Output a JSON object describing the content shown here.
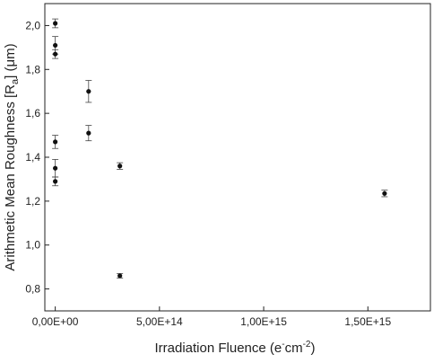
{
  "chart_data": {
    "type": "scatter",
    "title": "",
    "xlabel": "Irradiation Fluence (e⁻cm⁻²)",
    "ylabel": "Arithmetic Mean Roughness [Ra] (μm)",
    "ylabel_parts": {
      "before": "Arithmetic Mean Roughness [R",
      "sub": "a",
      "after": "] (μm)"
    },
    "xlabel_parts": {
      "before": "Irradiation Fluence (e",
      "sup1": "-",
      "mid": "cm",
      "sup2": "-2",
      "after": ")"
    },
    "xlim": [
      -50000000000000.0,
      1800000000000000.0
    ],
    "ylim": [
      0.7,
      2.1
    ],
    "x_ticks": [
      {
        "value": 0,
        "label": "0,00E+00"
      },
      {
        "value": 500000000000000.0,
        "label": "5,00E+14"
      },
      {
        "value": 1000000000000000.0,
        "label": "1,00E+15"
      },
      {
        "value": 1500000000000000.0,
        "label": "1,50E+15"
      }
    ],
    "y_ticks": [
      {
        "value": 0.8,
        "label": "0,8"
      },
      {
        "value": 1.0,
        "label": "1,0"
      },
      {
        "value": 1.2,
        "label": "1,2"
      },
      {
        "value": 1.4,
        "label": "1,4"
      },
      {
        "value": 1.6,
        "label": "1,6"
      },
      {
        "value": 1.8,
        "label": "1,8"
      },
      {
        "value": 2.0,
        "label": "2,0"
      }
    ],
    "grid": false,
    "points": [
      {
        "x": 0,
        "y": 2.01,
        "err": 0.02
      },
      {
        "x": 0,
        "y": 1.91,
        "err": 0.04
      },
      {
        "x": 0,
        "y": 1.87,
        "err": 0.02
      },
      {
        "x": 0,
        "y": 1.47,
        "err": 0.03
      },
      {
        "x": 0,
        "y": 1.35,
        "err": 0.04
      },
      {
        "x": 0,
        "y": 1.29,
        "err": 0.02
      },
      {
        "x": 160000000000000.0,
        "y": 1.7,
        "err": 0.05
      },
      {
        "x": 160000000000000.0,
        "y": 1.51,
        "err": 0.035
      },
      {
        "x": 310000000000000.0,
        "y": 1.36,
        "err": 0.015
      },
      {
        "x": 310000000000000.0,
        "y": 0.86,
        "err": 0.01
      },
      {
        "x": 1580000000000000.0,
        "y": 1.235,
        "err": 0.015
      }
    ],
    "marker_color": "#111111"
  }
}
